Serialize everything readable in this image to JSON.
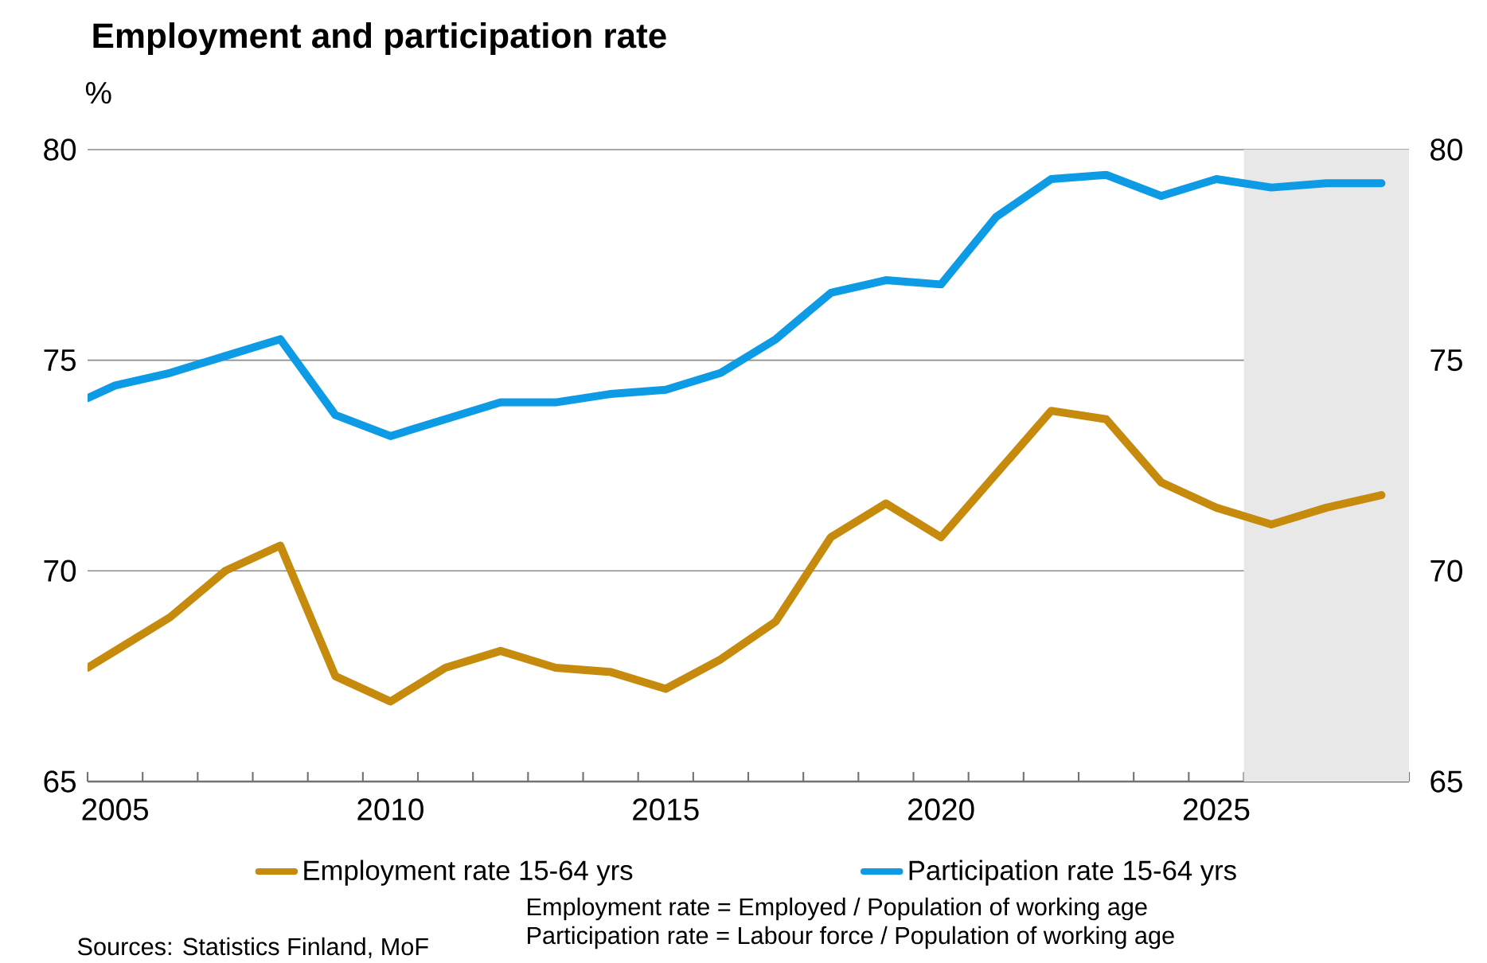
{
  "chart_data": {
    "type": "line",
    "title": "Employment and participation rate",
    "ylabel": "%",
    "x": [
      2004.5,
      2005,
      2006,
      2007,
      2008,
      2009,
      2010,
      2011,
      2012,
      2013,
      2014,
      2015,
      2016,
      2017,
      2018,
      2019,
      2020,
      2021,
      2022,
      2023,
      2024,
      2025,
      2026,
      2027,
      2028
    ],
    "series": [
      {
        "name": "Employment rate 15-64 yrs",
        "color": "#c68b0c",
        "values": [
          67.7,
          68.1,
          68.9,
          70.0,
          70.6,
          67.5,
          66.9,
          67.7,
          68.1,
          67.7,
          67.6,
          67.2,
          67.9,
          68.8,
          70.8,
          71.6,
          70.8,
          72.3,
          73.8,
          73.6,
          72.1,
          71.5,
          71.1,
          71.5,
          71.8
        ]
      },
      {
        "name": "Participation rate 15-64 yrs",
        "color": "#0c9be4",
        "values": [
          74.1,
          74.4,
          74.7,
          75.1,
          75.5,
          73.7,
          73.2,
          73.6,
          74.0,
          74.0,
          74.2,
          74.3,
          74.7,
          75.5,
          76.6,
          76.9,
          76.8,
          78.4,
          79.3,
          79.4,
          78.9,
          79.3,
          79.1,
          79.2,
          79.2
        ]
      }
    ],
    "xlim": [
      2004.5,
      2028.5
    ],
    "xticks": [
      {
        "value": 2005,
        "label": "2005"
      },
      {
        "value": 2010,
        "label": "2010"
      },
      {
        "value": 2015,
        "label": "2015"
      },
      {
        "value": 2020,
        "label": "2020"
      },
      {
        "value": 2025,
        "label": "2025"
      },
      {
        "value": 2004.5,
        "label": null
      },
      {
        "value": 2005.5,
        "label": null
      },
      {
        "value": 2006.5,
        "label": null
      },
      {
        "value": 2007.5,
        "label": null
      },
      {
        "value": 2008.5,
        "label": null
      },
      {
        "value": 2009.5,
        "label": null
      },
      {
        "value": 2010.5,
        "label": null
      },
      {
        "value": 2011.5,
        "label": null
      },
      {
        "value": 2012.5,
        "label": null
      },
      {
        "value": 2013.5,
        "label": null
      },
      {
        "value": 2014.5,
        "label": null
      },
      {
        "value": 2015.5,
        "label": null
      },
      {
        "value": 2016.5,
        "label": null
      },
      {
        "value": 2017.5,
        "label": null
      },
      {
        "value": 2018.5,
        "label": null
      },
      {
        "value": 2019.5,
        "label": null
      },
      {
        "value": 2020.5,
        "label": null
      },
      {
        "value": 2021.5,
        "label": null
      },
      {
        "value": 2022.5,
        "label": null
      },
      {
        "value": 2023.5,
        "label": null
      },
      {
        "value": 2024.5,
        "label": null
      },
      {
        "value": 2025.5,
        "label": null
      },
      {
        "value": 2026.5,
        "label": null
      },
      {
        "value": 2027.5,
        "label": null
      },
      {
        "value": 2028.5,
        "label": null
      }
    ],
    "ylim": [
      65,
      80
    ],
    "yticks": [
      65,
      70,
      75,
      80
    ],
    "y2lim": [
      65,
      80
    ],
    "y2ticks": [
      65,
      70,
      75,
      80
    ],
    "bands": [
      {
        "axis": "x",
        "from": 2025.5,
        "to": 2028.5,
        "color": "#e8e8e8"
      }
    ],
    "grid": "y",
    "legend": "bottom",
    "line_style": "solid",
    "marker": "none",
    "annotations": [
      "Employment rate = Employed / Population of working age",
      "Participation rate = Labour force / Population of working age",
      "Sources: Statistics Finland, MoF"
    ]
  }
}
